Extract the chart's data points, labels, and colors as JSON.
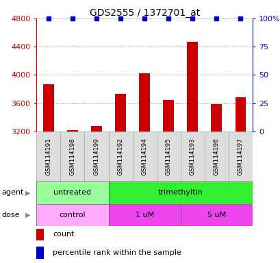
{
  "title": "GDS2555 / 1372701_at",
  "samples": [
    "GSM114191",
    "GSM114198",
    "GSM114199",
    "GSM114192",
    "GSM114194",
    "GSM114195",
    "GSM114193",
    "GSM114196",
    "GSM114197"
  ],
  "bar_values": [
    3870,
    3220,
    3280,
    3730,
    4020,
    3650,
    4470,
    3590,
    3680
  ],
  "percentile_values": [
    100,
    100,
    100,
    100,
    100,
    100,
    100,
    100,
    100
  ],
  "bar_color": "#cc0000",
  "dot_color": "#0000cc",
  "ylim_left": [
    3200,
    4800
  ],
  "ylim_right": [
    0,
    100
  ],
  "yticks_left": [
    3200,
    3600,
    4000,
    4400,
    4800
  ],
  "yticks_right": [
    0,
    25,
    50,
    75,
    100
  ],
  "ytick_labels_right": [
    "0",
    "25",
    "50",
    "75",
    "100%"
  ],
  "agent_groups": [
    {
      "label": "untreated",
      "start": 0,
      "end": 3,
      "color": "#99ff99"
    },
    {
      "label": "trimethyltin",
      "start": 3,
      "end": 9,
      "color": "#33ee33"
    }
  ],
  "dose_groups": [
    {
      "label": "control",
      "start": 0,
      "end": 3,
      "color": "#ffaaff"
    },
    {
      "label": "1 uM",
      "start": 3,
      "end": 6,
      "color": "#ee44ee"
    },
    {
      "label": "5 uM",
      "start": 6,
      "end": 9,
      "color": "#ee44ee"
    }
  ],
  "grid_color": "#888888",
  "background_color": "#ffffff",
  "agent_label": "agent",
  "dose_label": "dose",
  "legend_count_label": "count",
  "legend_pct_label": "percentile rank within the sample",
  "sample_box_color": "#dddddd",
  "sample_box_edge": "#aaaaaa"
}
